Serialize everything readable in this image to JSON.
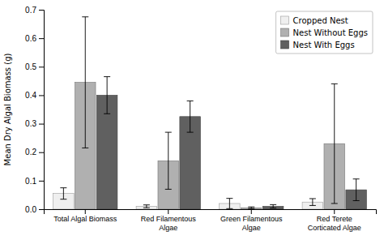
{
  "chart_data": {
    "type": "bar",
    "categories": [
      "Total Algal Biomass",
      "Red Filamentous\nAlgae",
      "Green Filamentous\nAlgae",
      "Red Terete\nCorticated Algae"
    ],
    "series": [
      {
        "name": "Cropped Nest",
        "color": "#efefef",
        "values": [
          0.055,
          0.01,
          0.02,
          0.025
        ],
        "errors": [
          0.02,
          0.005,
          0.018,
          0.012
        ]
      },
      {
        "name": "Nest Without Eggs",
        "color": "#b0b0b0",
        "values": [
          0.445,
          0.17,
          0.005,
          0.23
        ],
        "errors": [
          0.23,
          0.1,
          0.003,
          0.21
        ]
      },
      {
        "name": "Nest With Eggs",
        "color": "#606060",
        "values": [
          0.4,
          0.325,
          0.01,
          0.068
        ],
        "errors": [
          0.065,
          0.055,
          0.006,
          0.038
        ]
      }
    ],
    "ylabel": "Mean Dry Algal Biomass (g)",
    "ylim": [
      0,
      0.7
    ],
    "yticks": [
      {
        "value": 0,
        "label": "0.0"
      },
      0.1,
      0.2,
      0.3,
      0.4,
      0.5,
      0.6,
      0.7
    ],
    "legend": "upper right",
    "grid": false
  }
}
